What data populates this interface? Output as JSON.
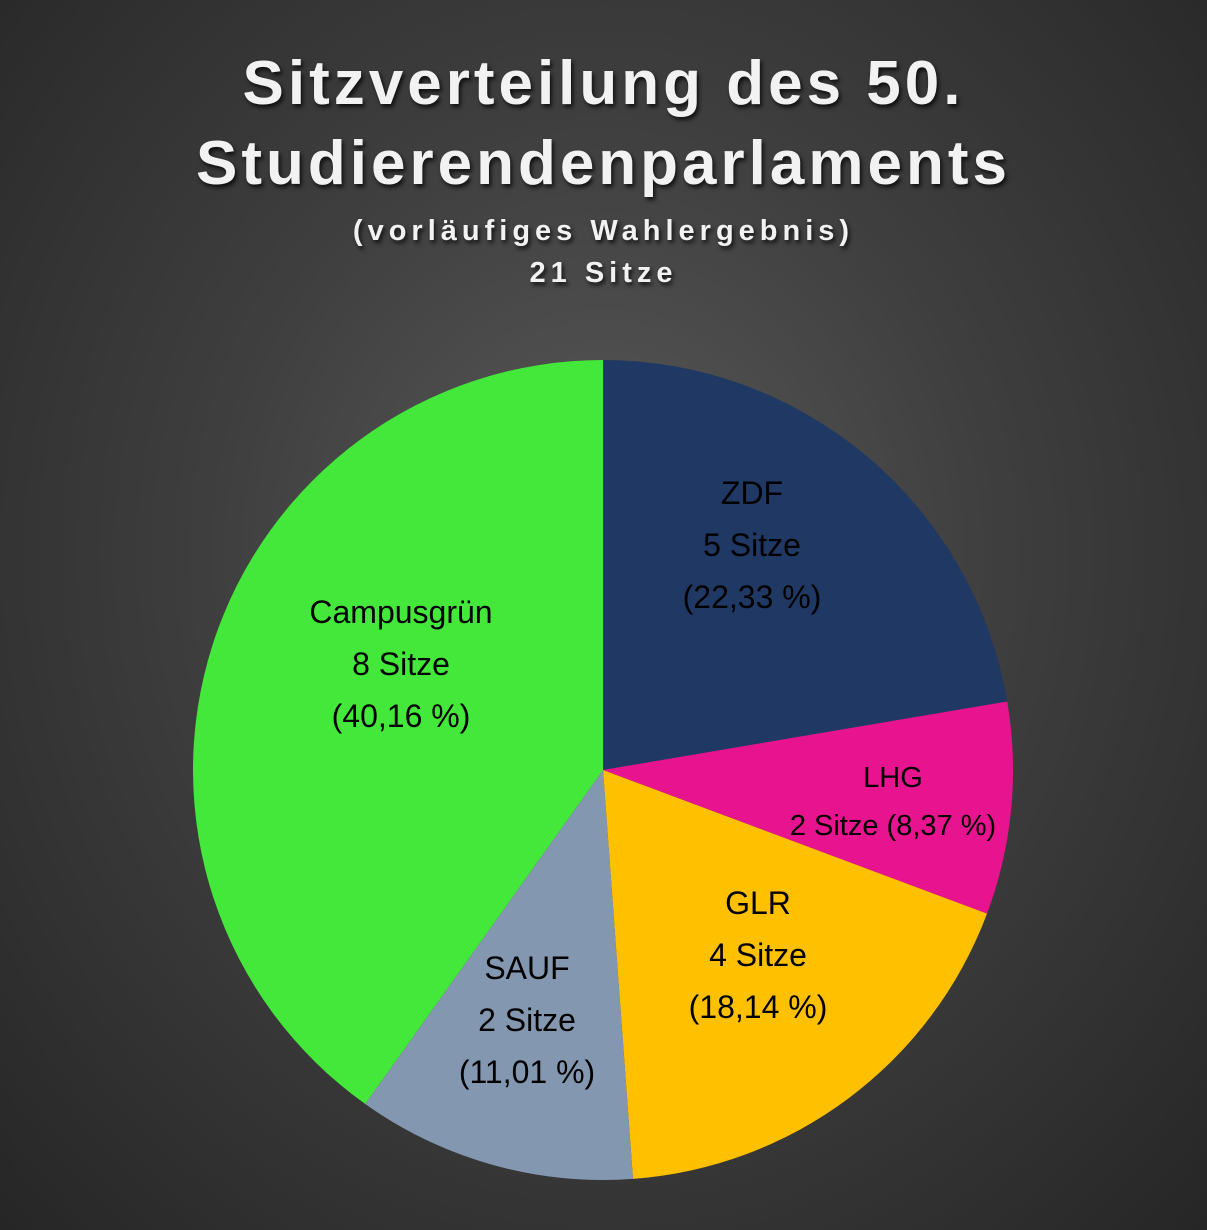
{
  "title": {
    "line1": "Sitzverteilung des 50.",
    "line2": "Studierendenparlaments",
    "subtitle1": "(vorläufiges Wahlergebnis)",
    "subtitle2": "21 Sitze"
  },
  "chart_data": {
    "type": "pie",
    "title": "Sitzverteilung des 50. Studierendenparlaments",
    "subtitle": "(vorläufiges Wahlergebnis) 21 Sitze",
    "total_seats": 21,
    "start_angle_deg": 0,
    "direction": "clockwise",
    "slices": [
      {
        "name": "ZDF",
        "seats": 5,
        "percent": 22.33,
        "seats_label": "5 Sitze",
        "percent_label": "(22,33 %)",
        "color": "#203864"
      },
      {
        "name": "LHG",
        "seats": 2,
        "percent": 8.37,
        "seats_label": "2 Sitze (8,37 %)",
        "percent_label": "",
        "color": "#E8138F"
      },
      {
        "name": "GLR",
        "seats": 4,
        "percent": 18.14,
        "seats_label": "4 Sitze",
        "percent_label": "(18,14 %)",
        "color": "#FFC000"
      },
      {
        "name": "SAUF",
        "seats": 2,
        "percent": 11.01,
        "seats_label": "2 Sitze",
        "percent_label": "(11,01 %)",
        "color": "#8497B0"
      },
      {
        "name": "Campusgrün",
        "seats": 8,
        "percent": 40.16,
        "seats_label": "8 Sitze",
        "percent_label": "(40,16 %)",
        "color": "#43E83A"
      }
    ]
  }
}
